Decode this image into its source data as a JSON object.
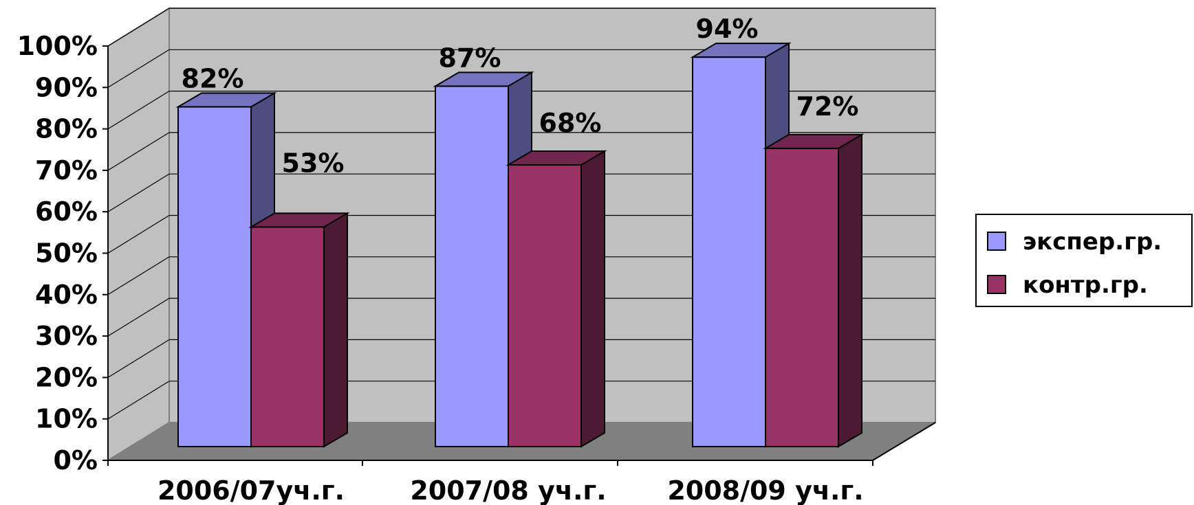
{
  "chart_data": {
    "type": "bar",
    "categories": [
      "2006/07уч.г.",
      "2007/08 уч.г.",
      "2008/09 уч.г."
    ],
    "series": [
      {
        "name": "экспер.гр.",
        "values": [
          82,
          87,
          94
        ],
        "labels": [
          "82%",
          "87%",
          "94%"
        ],
        "color": "#9999FF"
      },
      {
        "name": "контр.гр.",
        "values": [
          53,
          68,
          72
        ],
        "labels": [
          "53%",
          "68%",
          "72%"
        ],
        "color": "#993366"
      }
    ],
    "y_ticks": [
      "0%",
      "10%",
      "20%",
      "30%",
      "40%",
      "50%",
      "60%",
      "70%",
      "80%",
      "90%",
      "100%"
    ],
    "ylim": [
      0,
      100
    ],
    "grid": true,
    "legend_position": "right",
    "style": "3d-clustered-column",
    "colors": {
      "back_wall": "#C0C0C0",
      "floor": "#808080",
      "grid": "#000000"
    }
  }
}
